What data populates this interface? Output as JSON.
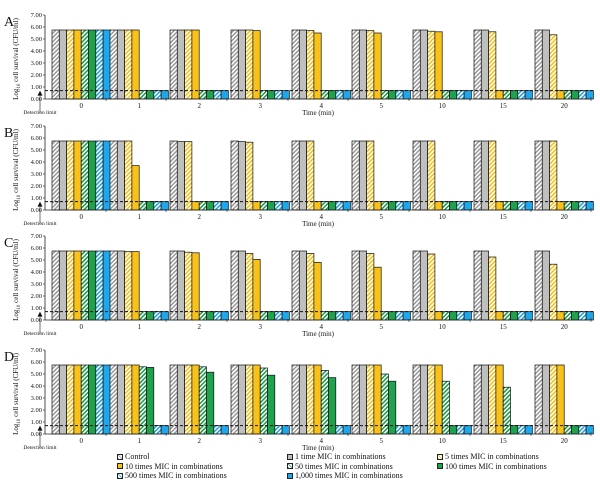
{
  "chart_data": {
    "type": "bar",
    "ylabel": "Log10 cell survival (CFU/ml)",
    "ylabel_parts": {
      "pre": "Log",
      "sub": "10",
      "post": " cell survival (CFU/ml)"
    },
    "xlabel": "Time (min)",
    "ylim": [
      0,
      7
    ],
    "yticks": [
      "0.00",
      "1.00",
      "2.00",
      "3.00",
      "4.00",
      "5.00",
      "6.00",
      "7.00"
    ],
    "categories": [
      "0",
      "1",
      "2",
      "3",
      "4",
      "5",
      "10",
      "15",
      "20"
    ],
    "detection_limit": 0.7,
    "detection_limit_label": "Detection limit",
    "legend_placement": "bottom",
    "series_meta": [
      {
        "name": "Control",
        "color": "#ffffff",
        "hatch": true,
        "hatch_color": "#999999"
      },
      {
        "name": "1 time MIC in combinations",
        "color": "#bfbfbf",
        "hatch": false
      },
      {
        "name": "5 times MIC in combinations",
        "color": "#ffffff",
        "hatch": true,
        "hatch_color": "#f5c010"
      },
      {
        "name": "10 times MIC in combinations",
        "color": "#f9c21a",
        "hatch": false
      },
      {
        "name": "50 times MIC in combinations",
        "color": "#ffffff",
        "hatch": true,
        "hatch_color": "#1a9a48"
      },
      {
        "name": "100 times MIC in combinations",
        "color": "#1fa24e",
        "hatch": false
      },
      {
        "name": "500 times MIC in combinations",
        "color": "#ffffff",
        "hatch": true,
        "hatch_color": "#20a0e0"
      },
      {
        "name": "1,000 times MIC in combinations",
        "color": "#1ea7ea",
        "hatch": false
      }
    ],
    "panels": [
      {
        "label": "A",
        "values": [
          [
            5.75,
            5.75,
            5.75,
            5.75,
            5.75,
            5.75,
            5.75,
            5.75
          ],
          [
            5.75,
            5.75,
            5.75,
            5.75,
            0.7,
            0.7,
            0.7,
            0.7
          ],
          [
            5.75,
            5.75,
            5.75,
            5.75,
            0.7,
            0.7,
            0.7,
            0.7
          ],
          [
            5.75,
            5.75,
            5.75,
            5.7,
            0.7,
            0.7,
            0.7,
            0.7
          ],
          [
            5.75,
            5.75,
            5.7,
            5.5,
            0.7,
            0.7,
            0.7,
            0.7
          ],
          [
            5.75,
            5.75,
            5.7,
            5.5,
            0.7,
            0.7,
            0.7,
            0.7
          ],
          [
            5.75,
            5.75,
            5.65,
            5.6,
            0.7,
            0.7,
            0.7,
            0.7
          ],
          [
            5.75,
            5.75,
            5.6,
            0.7,
            0.7,
            0.7,
            0.7,
            0.7
          ],
          [
            5.75,
            5.75,
            5.35,
            0.7,
            0.7,
            0.7,
            0.7,
            0.7
          ]
        ]
      },
      {
        "label": "B",
        "values": [
          [
            5.75,
            5.75,
            5.75,
            5.75,
            5.75,
            5.75,
            5.75,
            5.75
          ],
          [
            5.75,
            5.75,
            5.75,
            3.7,
            0.7,
            0.7,
            0.7,
            0.7
          ],
          [
            5.75,
            5.7,
            5.7,
            0.7,
            0.7,
            0.7,
            0.7,
            0.7
          ],
          [
            5.75,
            5.7,
            5.65,
            0.7,
            0.7,
            0.7,
            0.7,
            0.7
          ],
          [
            5.75,
            5.75,
            5.75,
            0.7,
            0.7,
            0.7,
            0.7,
            0.7
          ],
          [
            5.75,
            5.75,
            5.75,
            0.7,
            0.7,
            0.7,
            0.7,
            0.7
          ],
          [
            5.75,
            5.75,
            5.75,
            0.7,
            0.7,
            0.7,
            0.7,
            0.7
          ],
          [
            5.75,
            5.75,
            5.75,
            0.7,
            0.7,
            0.7,
            0.7,
            0.7
          ],
          [
            5.75,
            5.75,
            5.75,
            0.7,
            0.7,
            0.7,
            0.7,
            0.7
          ]
        ]
      },
      {
        "label": "C",
        "values": [
          [
            5.75,
            5.75,
            5.75,
            5.75,
            5.75,
            5.75,
            5.75,
            5.75
          ],
          [
            5.75,
            5.75,
            5.7,
            5.7,
            0.7,
            0.7,
            0.7,
            0.7
          ],
          [
            5.75,
            5.75,
            5.65,
            5.6,
            0.7,
            0.7,
            0.7,
            0.7
          ],
          [
            5.75,
            5.75,
            5.55,
            5.05,
            0.7,
            0.7,
            0.7,
            0.7
          ],
          [
            5.75,
            5.75,
            5.55,
            4.8,
            0.7,
            0.7,
            0.7,
            0.7
          ],
          [
            5.75,
            5.75,
            5.55,
            4.4,
            0.7,
            0.7,
            0.7,
            0.7
          ],
          [
            5.75,
            5.75,
            5.5,
            0.7,
            0.7,
            0.7,
            0.7,
            0.7
          ],
          [
            5.75,
            5.75,
            5.25,
            0.7,
            0.7,
            0.7,
            0.7,
            0.7
          ],
          [
            5.75,
            5.75,
            4.65,
            0.7,
            0.7,
            0.7,
            0.7,
            0.7
          ]
        ]
      },
      {
        "label": "D",
        "values": [
          [
            5.75,
            5.75,
            5.75,
            5.75,
            5.75,
            5.75,
            5.75,
            5.75
          ],
          [
            5.75,
            5.75,
            5.75,
            5.75,
            5.6,
            5.55,
            0.7,
            0.7
          ],
          [
            5.75,
            5.75,
            5.75,
            5.75,
            5.6,
            5.15,
            0.7,
            0.7
          ],
          [
            5.75,
            5.75,
            5.75,
            5.75,
            5.5,
            4.9,
            0.7,
            0.7
          ],
          [
            5.75,
            5.75,
            5.75,
            5.75,
            5.3,
            4.7,
            0.7,
            0.7
          ],
          [
            5.75,
            5.75,
            5.75,
            5.75,
            5.0,
            4.4,
            0.7,
            0.7
          ],
          [
            5.75,
            5.75,
            5.75,
            5.75,
            4.4,
            0.7,
            0.7,
            0.7
          ],
          [
            5.75,
            5.75,
            5.75,
            5.75,
            3.9,
            0.7,
            0.7,
            0.7
          ],
          [
            5.75,
            5.75,
            5.75,
            5.75,
            0.7,
            0.7,
            0.7,
            0.7
          ]
        ]
      }
    ]
  },
  "legend": {
    "items": [
      {
        "label": "Control"
      },
      {
        "label": "1 time MIC in combinations"
      },
      {
        "label": "5 times MIC in combinations"
      },
      {
        "label": "10 times MIC in combinations"
      },
      {
        "label": "50 times MIC in combinations"
      },
      {
        "label": "100 times MIC in combinations"
      },
      {
        "label": "500 times MIC in combinations"
      },
      {
        "label": "1,000 times MIC in combinations"
      }
    ]
  }
}
